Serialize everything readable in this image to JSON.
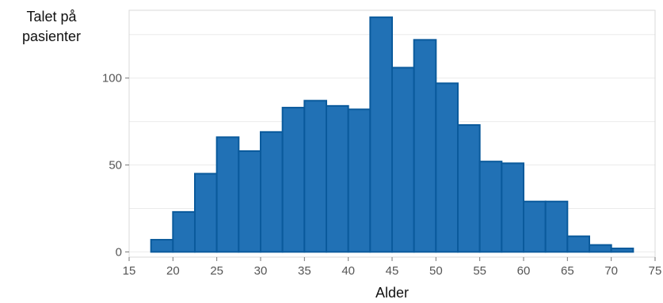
{
  "chart_data": {
    "type": "bar",
    "title": "",
    "xlabel": "Alder",
    "ylabel": "Talet på pasienter",
    "ylabel_lines": [
      "Talet på",
      "pasienter"
    ],
    "bin_width": 2.5,
    "bins": [
      {
        "start": 17.5,
        "count": 7
      },
      {
        "start": 20.0,
        "count": 23
      },
      {
        "start": 22.5,
        "count": 45
      },
      {
        "start": 25.0,
        "count": 66
      },
      {
        "start": 27.5,
        "count": 58
      },
      {
        "start": 30.0,
        "count": 69
      },
      {
        "start": 32.5,
        "count": 83
      },
      {
        "start": 35.0,
        "count": 87
      },
      {
        "start": 37.5,
        "count": 84
      },
      {
        "start": 40.0,
        "count": 82
      },
      {
        "start": 42.5,
        "count": 135
      },
      {
        "start": 45.0,
        "count": 106
      },
      {
        "start": 47.5,
        "count": 122
      },
      {
        "start": 50.0,
        "count": 97
      },
      {
        "start": 52.5,
        "count": 73
      },
      {
        "start": 55.0,
        "count": 52
      },
      {
        "start": 57.5,
        "count": 51
      },
      {
        "start": 60.0,
        "count": 29
      },
      {
        "start": 62.5,
        "count": 29
      },
      {
        "start": 65.0,
        "count": 9
      },
      {
        "start": 67.5,
        "count": 4
      },
      {
        "start": 70.0,
        "count": 2
      }
    ],
    "xlim": [
      15,
      75
    ],
    "ylim": [
      -3,
      139
    ],
    "x_ticks": [
      15,
      20,
      25,
      30,
      35,
      40,
      45,
      50,
      55,
      60,
      65,
      70,
      75
    ],
    "y_ticks": [
      0,
      50,
      100
    ],
    "grid": true,
    "bar_color": "#2171b5",
    "bar_edge_color": "#0a5a9c",
    "grid_color": "#ebebeb",
    "frame_color": "#d9d9d9"
  }
}
